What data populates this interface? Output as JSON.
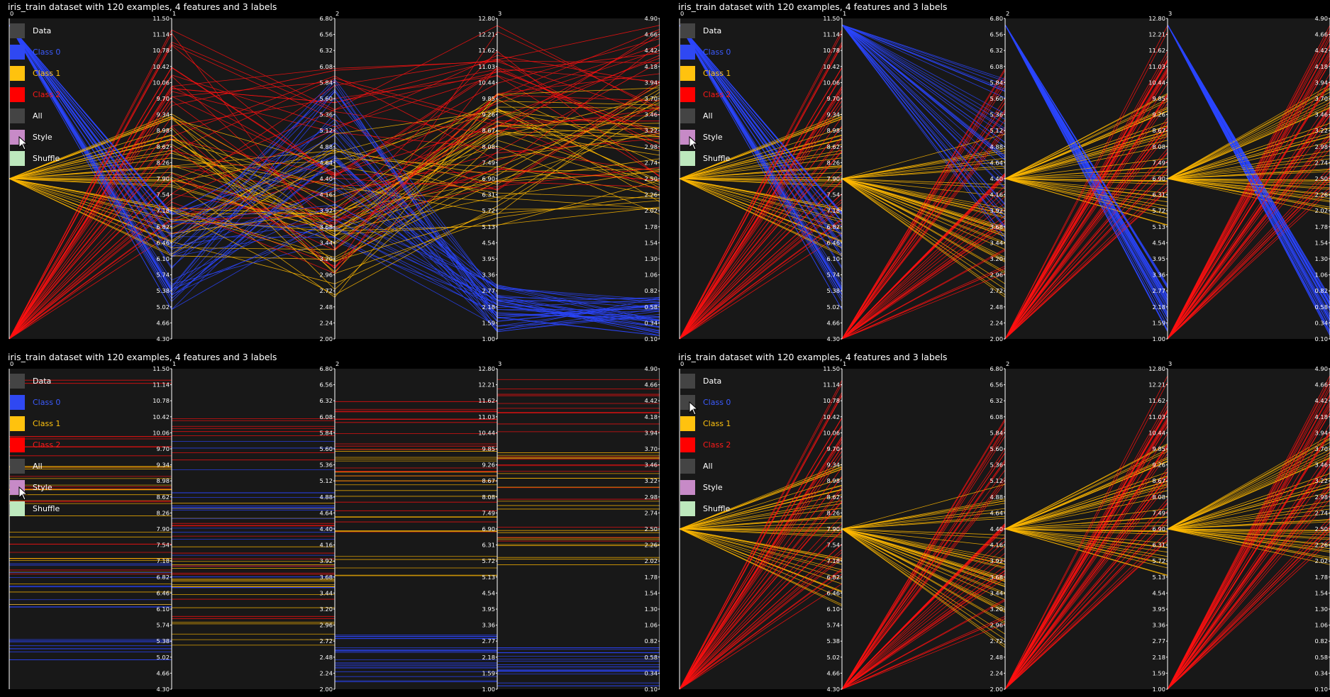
{
  "legend_items": [
    {
      "label": "Data",
      "swatch": "#444444",
      "text_color": "#ffffff"
    },
    {
      "label": "Class 0",
      "swatch": "#2f48f2",
      "text_color": "#3b5bff"
    },
    {
      "label": "Class 1",
      "swatch": "#ffc20e",
      "text_color": "#ffc20e"
    },
    {
      "label": "Class 2",
      "swatch": "#ff0000",
      "text_color": "#ff1a1a"
    },
    {
      "label": "All",
      "swatch": "#444444",
      "text_color": "#ffffff"
    },
    {
      "label": "Style",
      "swatch": "#c78ac7",
      "text_color": "#ffffff"
    },
    {
      "label": "Shuffle",
      "swatch": "#bde8bd",
      "text_color": "#ffffff"
    }
  ],
  "colors": {
    "class0": "#2a45ff",
    "class1": "#ffb800",
    "class2": "#ff1010",
    "background": "#181818",
    "axis": "#ffffff"
  },
  "cursor_icon": "mouse-pointer-icon",
  "chart_data": [
    {
      "type": "parallel-coordinates",
      "title": "iris_train dataset with 120 examples, 4 features and 3 labels",
      "axis_index_labels": [
        "0",
        "1",
        "2",
        "3"
      ],
      "axis_ranges": [
        [
          4.3,
          11.5
        ],
        [
          2.0,
          6.8
        ],
        [
          1.0,
          12.8
        ],
        [
          0.1,
          4.9
        ]
      ],
      "axis_ticks": [
        [
          "11.50",
          "11.14",
          "10.78",
          "10.42",
          "10.06",
          "9.70",
          "9.34",
          "8.98",
          "8.62",
          "8.26",
          "7.90",
          "7.54",
          "7.18",
          "6.82",
          "6.46",
          "6.10",
          "5.74",
          "5.38",
          "5.02",
          "4.66",
          "4.30"
        ],
        [
          "6.80",
          "6.56",
          "6.32",
          "6.08",
          "5.84",
          "5.60",
          "5.36",
          "5.12",
          "4.88",
          "4.64",
          "4.40",
          "4.16",
          "3.92",
          "3.68",
          "3.44",
          "3.20",
          "2.96",
          "2.72",
          "2.48",
          "2.24",
          "2.00"
        ],
        [
          "12.80",
          "12.21",
          "11.62",
          "11.03",
          "10.44",
          "9.85",
          "9.26",
          "8.67",
          "8.08",
          "7.49",
          "6.90",
          "6.31",
          "5.72",
          "5.13",
          "4.54",
          "3.95",
          "3.36",
          "2.77",
          "2.18",
          "1.59",
          "1.00"
        ],
        [
          "4.90",
          "4.66",
          "4.42",
          "4.18",
          "3.94",
          "3.70",
          "3.46",
          "3.22",
          "2.98",
          "2.74",
          "2.50",
          "2.26",
          "2.02",
          "1.78",
          "1.54",
          "1.30",
          "1.06",
          "0.82",
          "0.58",
          "0.34",
          "0.10"
        ]
      ],
      "first_axis_mode": "label",
      "mode": "lines",
      "legend_hover": "Style"
    },
    {
      "type": "parallel-coordinates",
      "title": "iris_train dataset with 120 examples, 4 features and 3 labels",
      "axis_index_labels": [
        "0",
        "1",
        "2",
        "3"
      ],
      "axis_ranges": [
        [
          4.3,
          11.5
        ],
        [
          2.0,
          6.8
        ],
        [
          1.0,
          12.8
        ],
        [
          0.1,
          4.9
        ]
      ],
      "axis_ticks": [
        [
          "11.50",
          "11.14",
          "10.78",
          "10.42",
          "10.06",
          "9.70",
          "9.34",
          "8.98",
          "8.62",
          "8.26",
          "7.90",
          "7.54",
          "7.18",
          "6.82",
          "6.46",
          "6.10",
          "5.74",
          "5.38",
          "5.02",
          "4.66",
          "4.30"
        ],
        [
          "6.80",
          "6.56",
          "6.32",
          "6.08",
          "5.84",
          "5.60",
          "5.36",
          "5.12",
          "4.88",
          "4.64",
          "4.40",
          "4.16",
          "3.92",
          "3.68",
          "3.44",
          "3.20",
          "2.96",
          "2.72",
          "2.48",
          "2.24",
          "2.00"
        ],
        [
          "12.80",
          "12.21",
          "11.62",
          "11.03",
          "10.44",
          "9.85",
          "9.26",
          "8.67",
          "8.08",
          "7.49",
          "6.90",
          "6.31",
          "5.72",
          "5.13",
          "4.54",
          "3.95",
          "3.36",
          "2.77",
          "2.18",
          "1.59",
          "1.00"
        ],
        [
          "4.90",
          "4.66",
          "4.42",
          "4.18",
          "3.94",
          "3.70",
          "3.46",
          "3.22",
          "2.98",
          "2.74",
          "2.50",
          "2.26",
          "2.02",
          "1.78",
          "1.54",
          "1.30",
          "1.06",
          "0.82",
          "0.58",
          "0.34",
          "0.10"
        ]
      ],
      "first_axis_mode": "label",
      "mode": "class-anchored",
      "legend_hover": "Style"
    },
    {
      "type": "parallel-coordinates",
      "title": "iris_train dataset with 120 examples, 4 features and 3 labels",
      "axis_index_labels": [
        "0",
        "1",
        "2",
        "3"
      ],
      "axis_ranges": [
        [
          4.3,
          11.5
        ],
        [
          2.0,
          6.8
        ],
        [
          1.0,
          12.8
        ],
        [
          0.1,
          4.9
        ]
      ],
      "axis_ticks": [
        [
          "11.50",
          "11.14",
          "10.78",
          "10.42",
          "10.06",
          "9.70",
          "9.34",
          "8.98",
          "8.62",
          "8.26",
          "7.90",
          "7.54",
          "7.18",
          "6.82",
          "6.46",
          "6.10",
          "5.74",
          "5.38",
          "5.02",
          "4.66",
          "4.30"
        ],
        [
          "6.80",
          "6.56",
          "6.32",
          "6.08",
          "5.84",
          "5.60",
          "5.36",
          "5.12",
          "4.88",
          "4.64",
          "4.40",
          "4.16",
          "3.92",
          "3.68",
          "3.44",
          "3.20",
          "2.96",
          "2.72",
          "2.48",
          "2.24",
          "2.00"
        ],
        [
          "12.80",
          "12.21",
          "11.62",
          "11.03",
          "10.44",
          "9.85",
          "9.26",
          "8.67",
          "8.08",
          "7.49",
          "6.90",
          "6.31",
          "5.72",
          "5.13",
          "4.54",
          "3.95",
          "3.36",
          "2.77",
          "2.18",
          "1.59",
          "1.00"
        ],
        [
          "4.90",
          "4.66",
          "4.42",
          "4.18",
          "3.94",
          "3.70",
          "3.46",
          "3.22",
          "2.98",
          "2.74",
          "2.50",
          "2.26",
          "2.02",
          "1.78",
          "1.54",
          "1.30",
          "1.06",
          "0.82",
          "0.58",
          "0.34",
          "0.10"
        ]
      ],
      "first_axis_mode": "value",
      "mode": "horizontal",
      "legend_hover": "Style"
    },
    {
      "type": "parallel-coordinates",
      "title": "iris_train dataset with 120 examples, 4 features and 3 labels",
      "axis_index_labels": [
        "0",
        "1",
        "2",
        "3"
      ],
      "axis_ranges": [
        [
          4.3,
          11.5
        ],
        [
          2.0,
          6.8
        ],
        [
          1.0,
          12.8
        ],
        [
          0.1,
          4.9
        ]
      ],
      "axis_ticks": [
        [
          "11.50",
          "11.14",
          "10.78",
          "10.42",
          "10.06",
          "9.70",
          "9.34",
          "8.98",
          "8.62",
          "8.26",
          "7.90",
          "7.54",
          "7.18",
          "6.82",
          "6.46",
          "6.10",
          "5.74",
          "5.38",
          "5.02",
          "4.66",
          "4.30"
        ],
        [
          "6.80",
          "6.56",
          "6.32",
          "6.08",
          "5.84",
          "5.60",
          "5.36",
          "5.12",
          "4.88",
          "4.64",
          "4.40",
          "4.16",
          "3.92",
          "3.68",
          "3.44",
          "3.20",
          "2.96",
          "2.72",
          "2.48",
          "2.24",
          "2.00"
        ],
        [
          "12.80",
          "12.21",
          "11.62",
          "11.03",
          "10.44",
          "9.85",
          "9.26",
          "8.67",
          "8.08",
          "7.49",
          "6.90",
          "6.31",
          "5.72",
          "5.13",
          "4.54",
          "3.95",
          "3.36",
          "2.77",
          "2.18",
          "1.59",
          "1.00"
        ],
        [
          "4.90",
          "4.66",
          "4.42",
          "4.18",
          "3.94",
          "3.70",
          "3.46",
          "3.22",
          "2.98",
          "2.74",
          "2.50",
          "2.26",
          "2.02",
          "1.78",
          "1.54",
          "1.30",
          "1.06",
          "0.82",
          "0.58",
          "0.34",
          "0.10"
        ]
      ],
      "first_axis_mode": "label",
      "mode": "class-anchored-hidden0",
      "legend_hover": "Class 0"
    }
  ]
}
